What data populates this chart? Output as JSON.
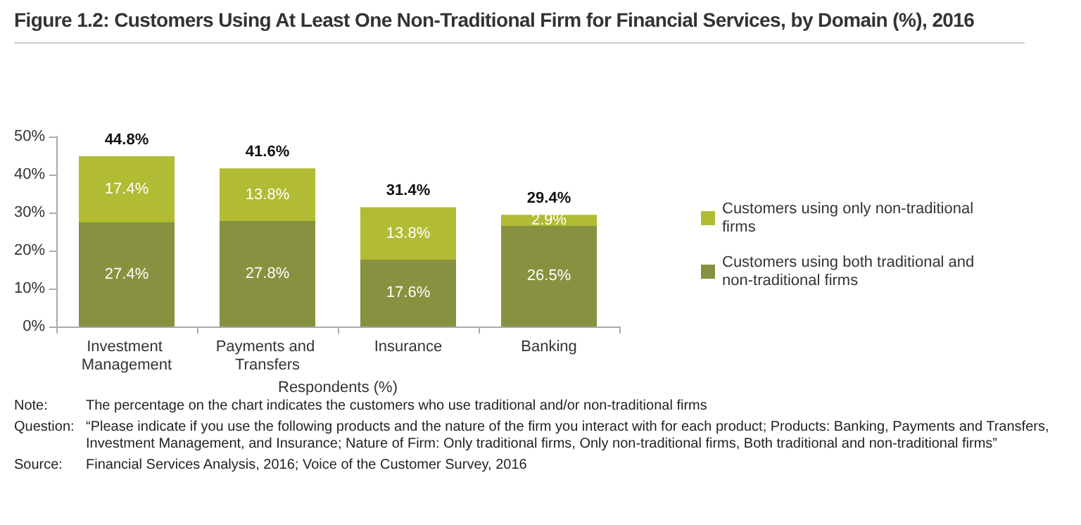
{
  "chart_data": {
    "type": "bar",
    "title": "Figure 1.2: Customers Using At Least One Non-Traditional Firm for Financial Services, by Domain (%), 2016",
    "xlabel": "Respondents (%)",
    "categories": [
      "Investment Management",
      "Payments and Transfers",
      "Insurance",
      "Banking"
    ],
    "stacked": true,
    "series": [
      {
        "name": "Customers using both traditional and non-traditional firms",
        "color": "#87913f",
        "values": [
          27.4,
          27.8,
          17.6,
          26.5
        ],
        "value_labels": [
          "27.4%",
          "27.8%",
          "17.6%",
          "26.5%"
        ]
      },
      {
        "name": "Customers using only non-traditional firms",
        "color": "#b1bb34",
        "values": [
          17.4,
          13.8,
          13.8,
          2.9
        ],
        "value_labels": [
          "17.4%",
          "13.8%",
          "13.8%",
          "2.9%"
        ]
      }
    ],
    "totals": [
      "44.8%",
      "41.6%",
      "31.4%",
      "29.4%"
    ],
    "ylim": [
      0,
      50
    ],
    "yticks": [
      {
        "value": 0,
        "label": "0%"
      },
      {
        "value": 10,
        "label": "10%"
      },
      {
        "value": 20,
        "label": "20%"
      },
      {
        "value": 30,
        "label": "30%"
      },
      {
        "value": 40,
        "label": "40%"
      },
      {
        "value": 50,
        "label": "50%"
      }
    ],
    "grid": false,
    "legend": "right",
    "annotations": [
      "Note: The percentage on the chart indicates the customers who use traditional and/or non-traditional firms",
      "Question: “Please indicate if you use the following products and the nature of the firm you interact with for each product; Products: Banking, Payments and Transfers, Investment Management, and Insurance; Nature of Firm: Only traditional firms, Only non-traditional firms, Both traditional and non-traditional firms”",
      "Source: Financial Services Analysis, 2016; Voice of the Customer Survey, 2016"
    ]
  }
}
